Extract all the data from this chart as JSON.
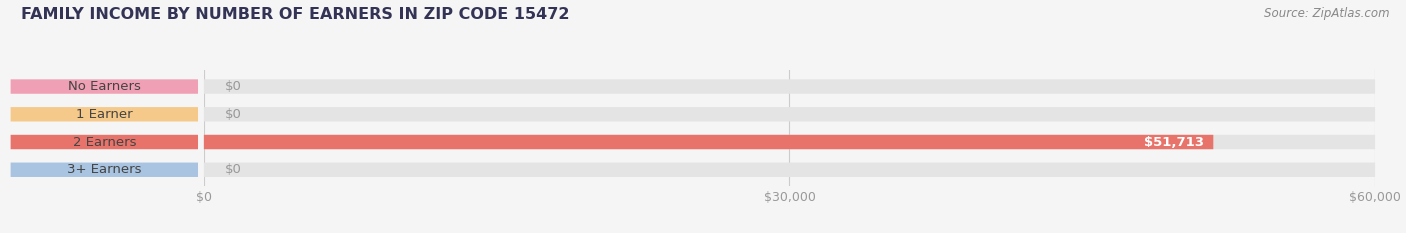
{
  "title": "FAMILY INCOME BY NUMBER OF EARNERS IN ZIP CODE 15472",
  "source": "Source: ZipAtlas.com",
  "categories": [
    "No Earners",
    "1 Earner",
    "2 Earners",
    "3+ Earners"
  ],
  "values": [
    0,
    0,
    51713,
    0
  ],
  "bar_colors": [
    "#f0a0b4",
    "#f5c98a",
    "#e8736a",
    "#a8c4e0"
  ],
  "xlim": [
    0,
    60000
  ],
  "xticks": [
    0,
    30000,
    60000
  ],
  "xtick_labels": [
    "$0",
    "$30,000",
    "$60,000"
  ],
  "background_color": "#f5f5f5",
  "bar_background_color": "#e4e4e4",
  "title_color": "#333355",
  "title_fontsize": 11.5,
  "source_fontsize": 8.5,
  "label_fontsize": 9.5,
  "value_label_fontsize": 9.5,
  "bar_height": 0.52,
  "value_51713_label": "$51,713"
}
